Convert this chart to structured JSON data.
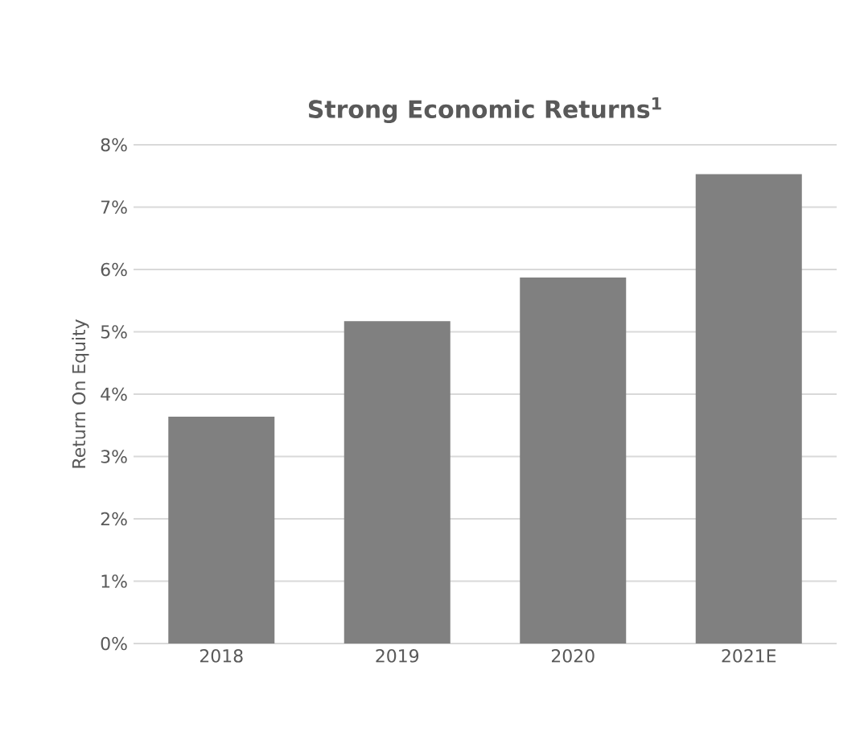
{
  "chart_data": {
    "type": "bar",
    "title": "Strong Economic Returns$^{1}$",
    "ylabel": "Return On Equity",
    "categories": [
      "2018",
      "2019",
      "2020",
      "2021E"
    ],
    "values": [
      3.64,
      5.17,
      5.87,
      7.53
    ],
    "color": "#808080",
    "ylim": [
      0,
      8
    ],
    "yticks": [
      {
        "value": 0,
        "label": "0%"
      },
      {
        "value": 1,
        "label": "1%"
      },
      {
        "value": 2,
        "label": "2%"
      },
      {
        "value": 3,
        "label": "3%"
      },
      {
        "value": 4,
        "label": "4%"
      },
      {
        "value": 5,
        "label": "5%"
      },
      {
        "value": 6,
        "label": "6%"
      },
      {
        "value": 7,
        "label": "7%"
      },
      {
        "value": 8,
        "label": "8%"
      }
    ],
    "grid": "y"
  }
}
